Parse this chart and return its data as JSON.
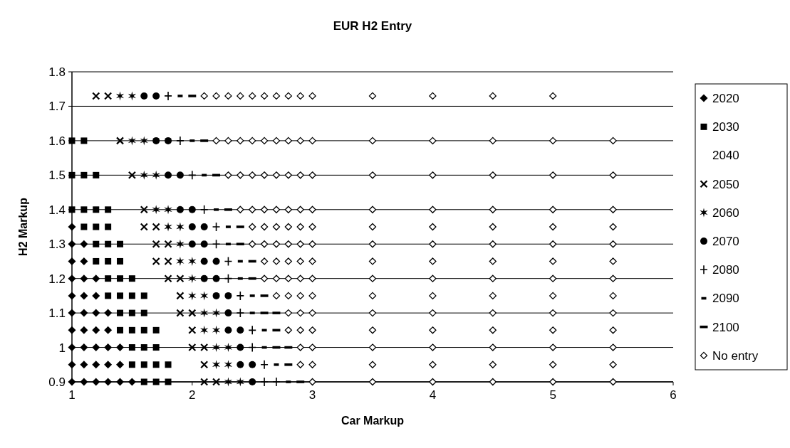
{
  "chart_data": {
    "type": "scatter",
    "title": "EUR H2 Entry",
    "xlabel": "Car Markup",
    "ylabel": "H2 Markup",
    "xlim": [
      1,
      6
    ],
    "xticks": [
      1,
      2,
      3,
      4,
      5,
      6
    ],
    "ylim": [
      0.9,
      1.8
    ],
    "yticks": [
      0.9,
      1,
      1.1,
      1.2,
      1.3,
      1.4,
      1.5,
      1.6,
      1.7,
      1.8
    ],
    "grid": "y",
    "legend": "right",
    "series": [
      {
        "name": "2020",
        "color": "#000000",
        "marker": "diamond",
        "x": [
          1.0,
          1.0,
          1.1,
          1.0,
          1.1,
          1.0,
          1.1,
          1.2,
          1.0,
          1.1,
          1.2,
          1.0,
          1.1,
          1.2,
          1.3,
          1.0,
          1.1,
          1.2,
          1.3,
          1.0,
          1.1,
          1.2,
          1.3,
          1.4,
          1.0,
          1.1,
          1.2,
          1.3,
          1.4,
          1.0,
          1.1,
          1.2,
          1.3,
          1.4,
          1.5
        ],
        "values": [
          1.35,
          1.3,
          1.3,
          1.25,
          1.25,
          1.2,
          1.2,
          1.2,
          1.15,
          1.15,
          1.15,
          1.1,
          1.1,
          1.1,
          1.1,
          1.05,
          1.05,
          1.05,
          1.05,
          1.0,
          1.0,
          1.0,
          1.0,
          1.0,
          0.95,
          0.95,
          0.95,
          0.95,
          0.95,
          0.9,
          0.9,
          0.9,
          0.9,
          0.9,
          0.9
        ]
      },
      {
        "name": "2030",
        "color": "#000000",
        "marker": "square",
        "x": [
          1.0,
          1.1,
          1.0,
          1.1,
          1.2,
          1.0,
          1.1,
          1.2,
          1.3,
          1.1,
          1.2,
          1.3,
          1.2,
          1.3,
          1.4,
          1.2,
          1.3,
          1.4,
          1.3,
          1.4,
          1.5,
          1.3,
          1.4,
          1.5,
          1.6,
          1.4,
          1.5,
          1.6,
          1.4,
          1.5,
          1.6,
          1.7,
          1.5,
          1.6,
          1.7,
          1.5,
          1.6,
          1.7,
          1.8,
          1.6,
          1.7,
          1.8
        ],
        "values": [
          1.6,
          1.6,
          1.5,
          1.5,
          1.5,
          1.4,
          1.4,
          1.4,
          1.4,
          1.35,
          1.35,
          1.35,
          1.3,
          1.3,
          1.3,
          1.25,
          1.25,
          1.25,
          1.2,
          1.2,
          1.2,
          1.15,
          1.15,
          1.15,
          1.15,
          1.1,
          1.1,
          1.1,
          1.05,
          1.05,
          1.05,
          1.05,
          1.0,
          1.0,
          1.0,
          0.95,
          0.95,
          0.95,
          0.95,
          0.9,
          0.9,
          0.9
        ]
      },
      {
        "name": "2040"
      },
      {
        "name": "2050",
        "color": "#000000",
        "marker": "cross",
        "x": [
          1.2,
          1.3,
          1.4,
          1.5,
          1.6,
          1.6,
          1.7,
          1.7,
          1.8,
          1.7,
          1.8,
          1.8,
          1.9,
          1.9,
          1.9,
          2.0,
          2.0,
          2.0,
          2.1,
          2.1,
          2.1,
          2.2
        ],
        "values": [
          1.73,
          1.73,
          1.6,
          1.5,
          1.4,
          1.35,
          1.35,
          1.3,
          1.3,
          1.25,
          1.25,
          1.2,
          1.2,
          1.15,
          1.1,
          1.1,
          1.05,
          1.0,
          1.0,
          0.95,
          0.9,
          0.9
        ]
      },
      {
        "name": "2060",
        "color": "#000000",
        "x": [
          1.4,
          1.5,
          1.5,
          1.6,
          1.6,
          1.7,
          1.7,
          1.8,
          1.8,
          1.9,
          1.9,
          1.9,
          2.0,
          2.0,
          2.0,
          2.1,
          2.1,
          2.2,
          2.1,
          2.2,
          2.2,
          2.3,
          2.2,
          2.3,
          2.3,
          2.4
        ],
        "values": [
          1.73,
          1.73,
          1.6,
          1.6,
          1.5,
          1.5,
          1.4,
          1.4,
          1.35,
          1.35,
          1.3,
          1.25,
          1.25,
          1.2,
          1.15,
          1.15,
          1.1,
          1.1,
          1.05,
          1.05,
          1.0,
          1.0,
          0.95,
          0.95,
          0.9,
          0.9
        ]
      },
      {
        "name": "2070",
        "color": "#000000",
        "marker": "circle",
        "x": [
          1.6,
          1.7,
          1.7,
          1.8,
          1.8,
          1.9,
          1.9,
          2.0,
          2.0,
          2.1,
          2.0,
          2.1,
          2.1,
          2.2,
          2.1,
          2.2,
          2.2,
          2.3,
          2.3,
          2.3,
          2.4,
          2.4,
          2.4,
          2.5,
          2.5
        ],
        "values": [
          1.73,
          1.73,
          1.6,
          1.6,
          1.5,
          1.5,
          1.4,
          1.4,
          1.35,
          1.35,
          1.3,
          1.3,
          1.25,
          1.25,
          1.2,
          1.2,
          1.15,
          1.15,
          1.1,
          1.05,
          1.05,
          1.0,
          0.95,
          0.95,
          0.9
        ]
      },
      {
        "name": "2080",
        "color": "#000000",
        "x": [
          1.8,
          1.9,
          2.0,
          2.1,
          2.2,
          2.2,
          2.3,
          2.3,
          2.4,
          2.4,
          2.5,
          2.5,
          2.6,
          2.6,
          2.7
        ],
        "values": [
          1.73,
          1.6,
          1.5,
          1.4,
          1.35,
          1.3,
          1.25,
          1.2,
          1.15,
          1.1,
          1.05,
          1.0,
          0.95,
          0.9,
          0.9
        ]
      },
      {
        "name": "2090",
        "color": "#000000",
        "x": [
          1.9,
          2.0,
          2.1,
          2.2,
          2.3,
          2.3,
          2.4,
          2.4,
          2.5,
          2.5,
          2.6,
          2.6,
          2.7,
          2.8
        ],
        "values": [
          1.73,
          1.6,
          1.5,
          1.4,
          1.35,
          1.3,
          1.25,
          1.2,
          1.15,
          1.1,
          1.05,
          1.0,
          0.95,
          0.9
        ]
      },
      {
        "name": "2100",
        "color": "#000000",
        "x": [
          2.0,
          2.1,
          2.2,
          2.3,
          2.4,
          2.4,
          2.5,
          2.5,
          2.6,
          2.6,
          2.7,
          2.7,
          2.7,
          2.8,
          2.8,
          2.9
        ],
        "values": [
          1.73,
          1.6,
          1.5,
          1.4,
          1.35,
          1.3,
          1.25,
          1.2,
          1.15,
          1.1,
          1.1,
          1.05,
          1.0,
          1.0,
          0.95,
          0.9
        ]
      },
      {
        "name": "No entry",
        "color": "#000000",
        "x": [
          2.1,
          2.2,
          2.3,
          2.4,
          2.5,
          2.6,
          2.7,
          2.8,
          2.9,
          3.0,
          3.5,
          4,
          4.5,
          5,
          2.2,
          2.3,
          2.4,
          2.5,
          2.6,
          2.7,
          2.8,
          2.9,
          3.0,
          3.5,
          4,
          4.5,
          5,
          5.5,
          2.3,
          2.4,
          2.5,
          2.6,
          2.7,
          2.8,
          2.9,
          3.0,
          3.5,
          4,
          4.5,
          5,
          5.5,
          2.4,
          2.5,
          2.6,
          2.7,
          2.8,
          2.9,
          3.0,
          3.5,
          4,
          4.5,
          5,
          5.5,
          2.5,
          2.6,
          2.7,
          2.8,
          2.9,
          3.0,
          3.5,
          4,
          4.5,
          5,
          5.5,
          2.5,
          2.6,
          2.7,
          2.8,
          2.9,
          3.0,
          3.5,
          4,
          4.5,
          5,
          5.5,
          2.6,
          2.7,
          2.8,
          2.9,
          3.0,
          3.5,
          4,
          4.5,
          5,
          5.5,
          2.6,
          2.7,
          2.8,
          2.9,
          3.0,
          3.5,
          4,
          4.5,
          5,
          5.5,
          2.7,
          2.8,
          2.9,
          3.0,
          3.5,
          4,
          4.5,
          5,
          5.5,
          2.8,
          2.9,
          3.0,
          3.5,
          4,
          4.5,
          5,
          5.5,
          2.8,
          2.9,
          3.0,
          3.5,
          4,
          4.5,
          5,
          5.5,
          2.9,
          3.0,
          3.5,
          4,
          4.5,
          5,
          5.5,
          2.9,
          3.0,
          3.5,
          4,
          4.5,
          5,
          5.5,
          3.0,
          3.5,
          4,
          4.5,
          5,
          5.5
        ],
        "values": [
          1.73,
          1.73,
          1.73,
          1.73,
          1.73,
          1.73,
          1.73,
          1.73,
          1.73,
          1.73,
          1.73,
          1.73,
          1.73,
          1.73,
          1.6,
          1.6,
          1.6,
          1.6,
          1.6,
          1.6,
          1.6,
          1.6,
          1.6,
          1.6,
          1.6,
          1.6,
          1.6,
          1.6,
          1.5,
          1.5,
          1.5,
          1.5,
          1.5,
          1.5,
          1.5,
          1.5,
          1.5,
          1.5,
          1.5,
          1.5,
          1.5,
          1.4,
          1.4,
          1.4,
          1.4,
          1.4,
          1.4,
          1.4,
          1.4,
          1.4,
          1.4,
          1.4,
          1.4,
          1.35,
          1.35,
          1.35,
          1.35,
          1.35,
          1.35,
          1.35,
          1.35,
          1.35,
          1.35,
          1.35,
          1.3,
          1.3,
          1.3,
          1.3,
          1.3,
          1.3,
          1.3,
          1.3,
          1.3,
          1.3,
          1.3,
          1.25,
          1.25,
          1.25,
          1.25,
          1.25,
          1.25,
          1.25,
          1.25,
          1.25,
          1.25,
          1.2,
          1.2,
          1.2,
          1.2,
          1.2,
          1.2,
          1.2,
          1.2,
          1.2,
          1.2,
          1.15,
          1.15,
          1.15,
          1.15,
          1.15,
          1.15,
          1.15,
          1.15,
          1.15,
          1.1,
          1.1,
          1.1,
          1.1,
          1.1,
          1.1,
          1.1,
          1.1,
          1.05,
          1.05,
          1.05,
          1.05,
          1.05,
          1.05,
          1.05,
          1.05,
          1.0,
          1.0,
          1.0,
          1.0,
          1.0,
          1.0,
          1.0,
          0.95,
          0.95,
          0.95,
          0.95,
          0.95,
          0.95,
          0.95,
          0.9,
          0.9,
          0.9,
          0.9,
          0.9,
          0.9
        ]
      }
    ]
  }
}
